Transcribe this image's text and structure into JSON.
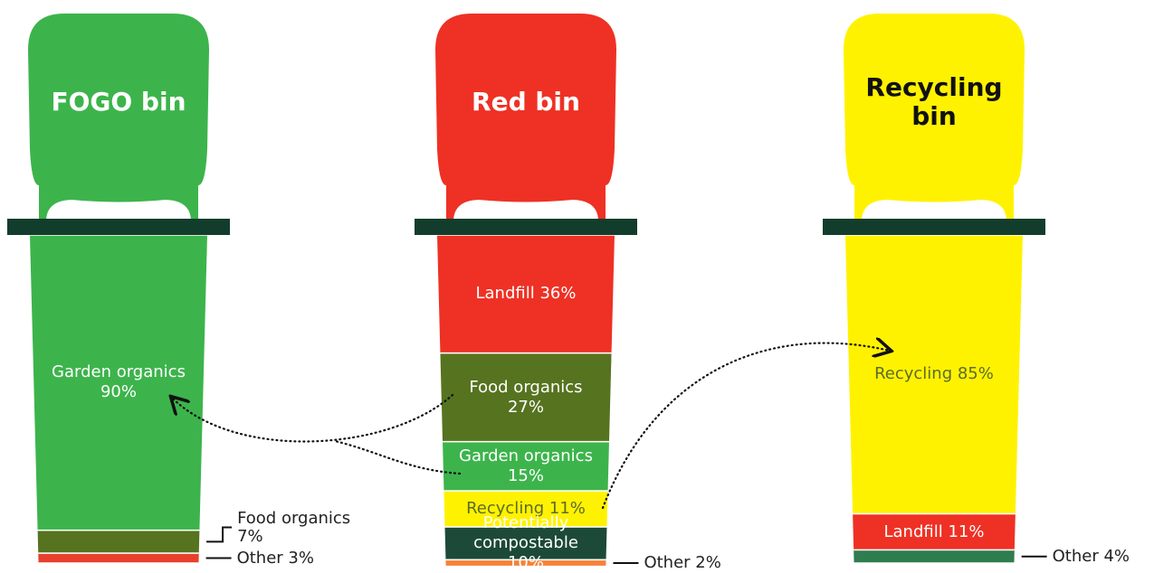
{
  "bins": [
    {
      "title": "FOGO bin",
      "color": "#3cb44b",
      "title_color": "#ffffff",
      "segments": [
        {
          "label": "Garden organics 90%",
          "value": 90,
          "color": "#3cb44b"
        },
        {
          "label": "Food organics 7%",
          "value": 7,
          "color": "#56731f"
        },
        {
          "label": "Other 3%",
          "value": 3,
          "color": "#e8402d"
        }
      ]
    },
    {
      "title": "Red bin",
      "color": "#ee3124",
      "title_color": "#ffffff",
      "segments": [
        {
          "label": "Landfill 36%",
          "value": 36,
          "color": "#ee3124"
        },
        {
          "label": "Food organics 27%",
          "value": 27,
          "color": "#56731f"
        },
        {
          "label": "Garden organics 15%",
          "value": 15,
          "color": "#3cb44b"
        },
        {
          "label": "Recycling 11%",
          "value": 11,
          "color": "#fff200"
        },
        {
          "label": "Potentially compostable 10%",
          "value": 10,
          "color": "#1d4a38"
        },
        {
          "label": "Other 2%",
          "value": 2,
          "color": "#f5823a"
        }
      ]
    },
    {
      "title": "Recycling bin",
      "color": "#fff200",
      "title_color": "#111111",
      "segments": [
        {
          "label": "Recycling 85%",
          "value": 85,
          "color": "#fff200"
        },
        {
          "label": "Landfill 11%",
          "value": 11,
          "color": "#ee3124"
        },
        {
          "label": "Other 4%",
          "value": 4,
          "color": "#2e7d4f"
        }
      ]
    }
  ]
}
